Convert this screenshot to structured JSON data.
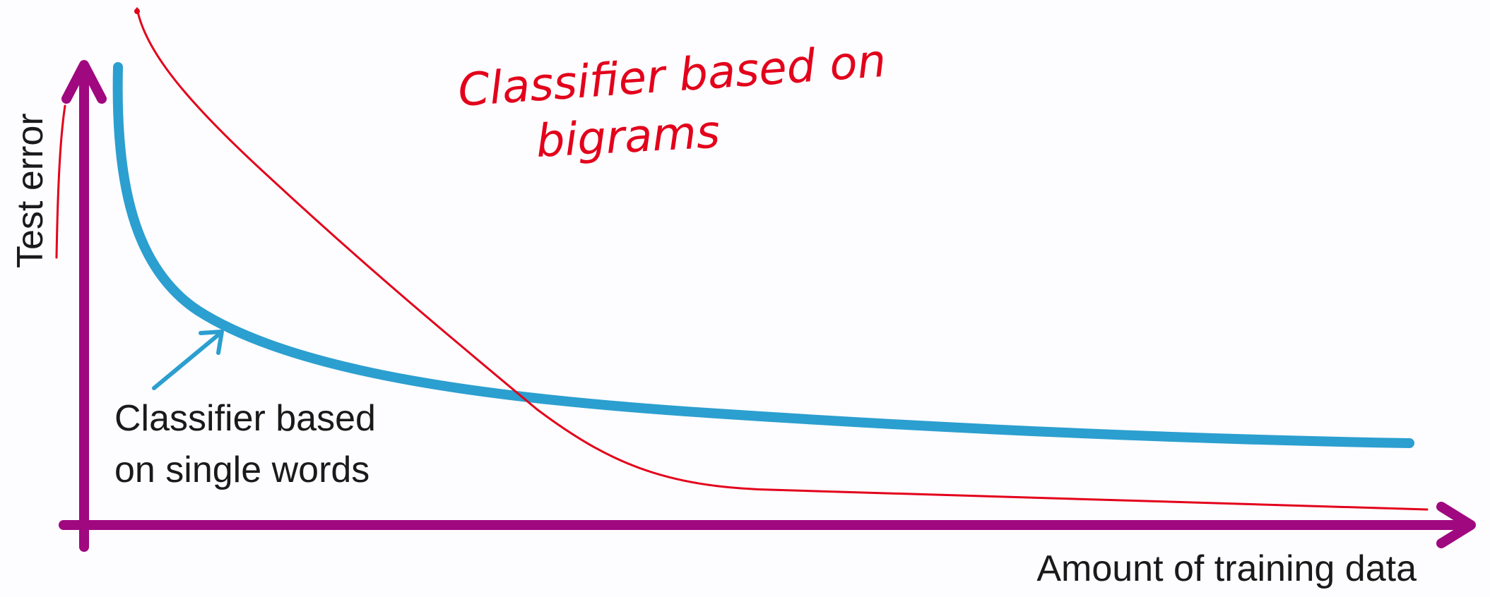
{
  "axes": {
    "y_label": "Test error",
    "x_label": "Amount of training data"
  },
  "curves": {
    "single_words_label_line1": "Classifier based",
    "single_words_label_line2": "on single words",
    "bigrams_label_line1": "Classifier based on",
    "bigrams_label_line2": "bigrams"
  },
  "colors": {
    "axis": "#a0087f",
    "single_words_curve": "#2b9fcf",
    "bigrams_curve": "#e3001b",
    "text": "#1a1a1a"
  }
}
